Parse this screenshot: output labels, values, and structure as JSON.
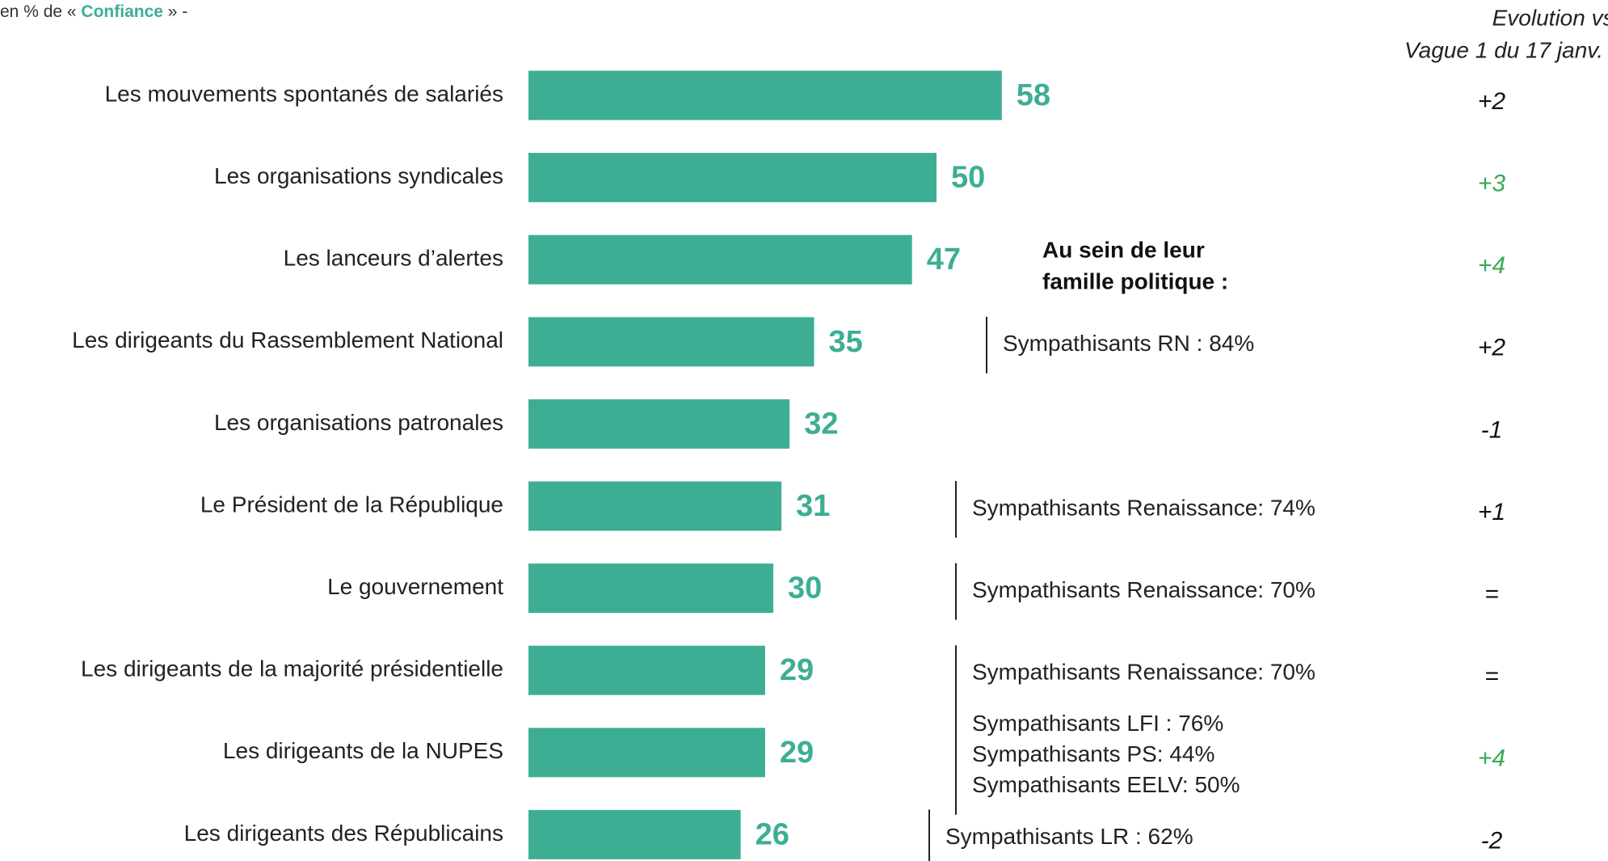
{
  "chart_data": {
    "type": "bar",
    "subtitle": [
      "en % de «",
      "Confiance",
      "» -"
    ],
    "evolution_header": [
      "Evolution vs.",
      "Vague 1 du 17 janv."
    ],
    "family_heading": [
      "Au sein de leur",
      "famille politique :"
    ],
    "categories": [
      "Les mouvements spontanés de salariés",
      "Les organisations syndicales",
      "Les lanceurs d’alertes",
      "Les dirigeants du Rassemblement National",
      "Les organisations patronales",
      "Le Président de la République",
      "Le gouvernement",
      "Les dirigeants de la majorité présidentielle",
      "Les dirigeants de la NUPES",
      "Les dirigeants des Républicains"
    ],
    "values": [
      58,
      50,
      47,
      35,
      32,
      31,
      30,
      29,
      29,
      26
    ],
    "color": "#3dae94",
    "evolution": [
      "+2",
      "+3",
      "+4",
      "+2",
      "-1",
      "+1",
      "=",
      "=",
      "+4",
      "-2"
    ],
    "evolution_colors": [
      "#111111",
      "#3aaa55",
      "#3aaa55",
      "#111111",
      "#111111",
      "#111111",
      "#111111",
      "#111111",
      "#3aaa55",
      "#111111"
    ],
    "notes": [
      null,
      null,
      null,
      [
        "Sympathisants RN : 84%"
      ],
      null,
      [
        "Sympathisants Renaissance: 74%"
      ],
      [
        "Sympathisants Renaissance: 70%"
      ],
      [
        "Sympathisants Renaissance: 70%"
      ],
      [
        "Sympathisants LFI : 76%",
        "Sympathisants PS: 44%",
        "Sympathisants EELV: 50%"
      ],
      [
        "Sympathisants LR : 62%"
      ]
    ]
  }
}
